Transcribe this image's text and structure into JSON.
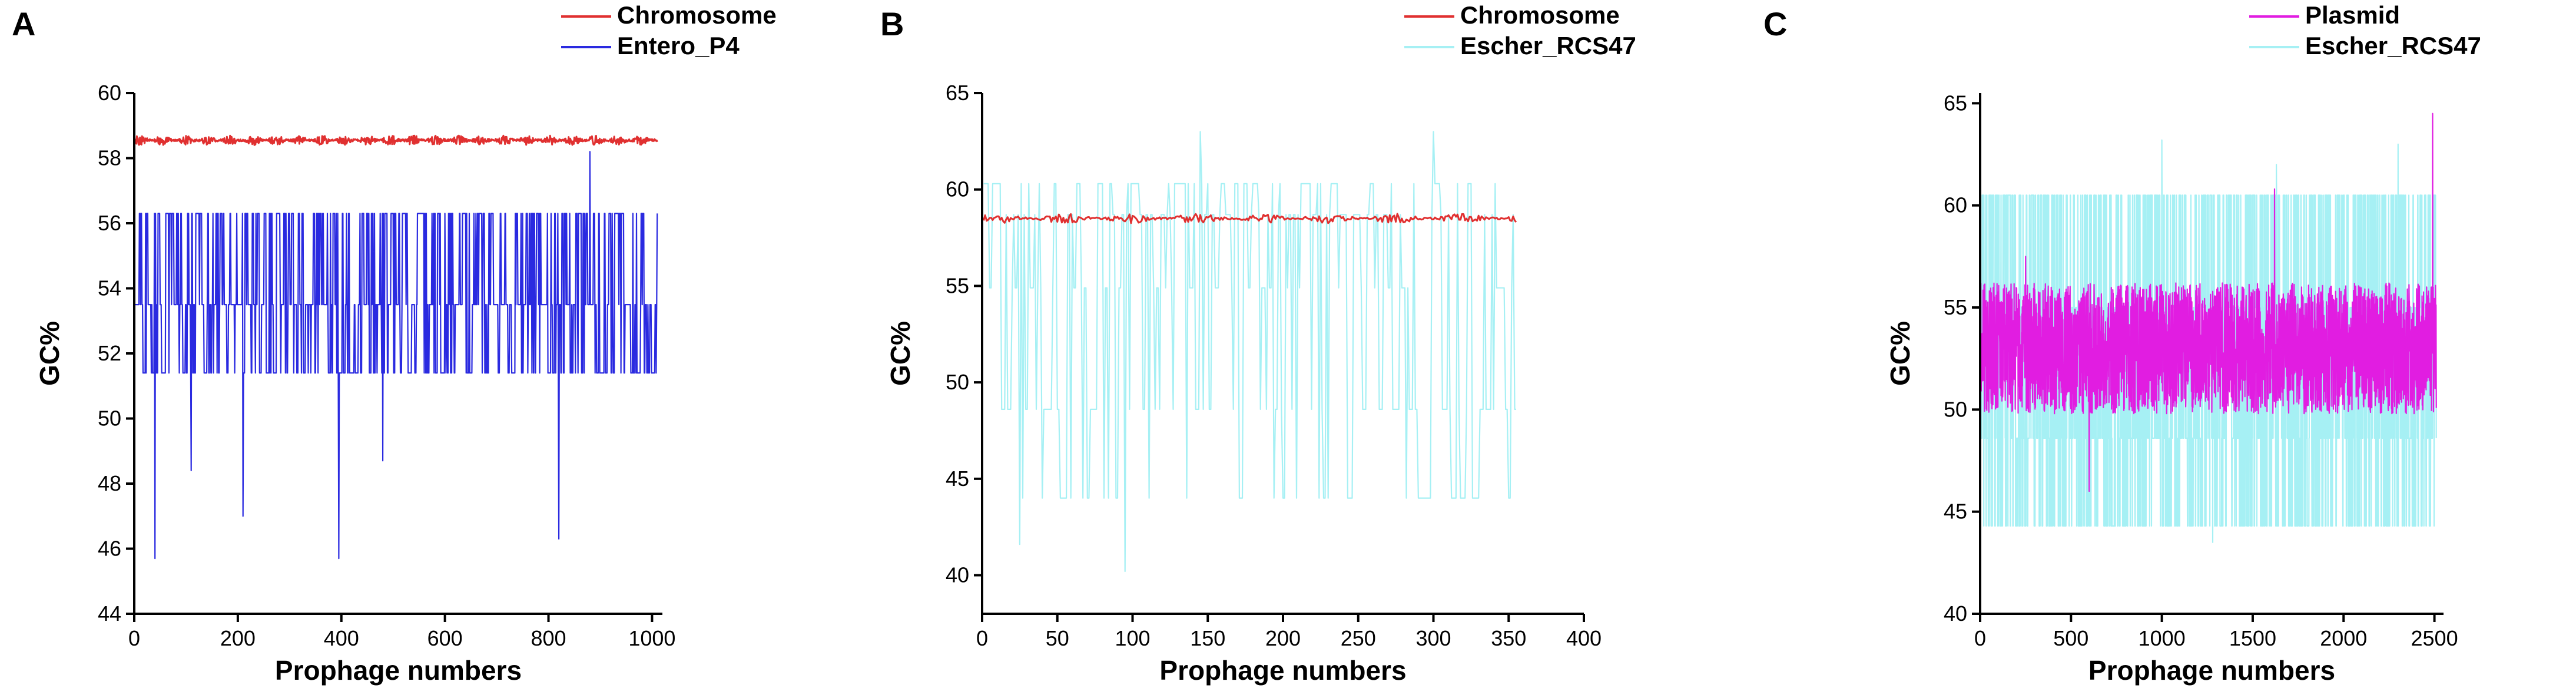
{
  "chart_data": [
    {
      "type": "line",
      "panel_label": "A",
      "xlabel": "Prophage numbers",
      "ylabel": "GC%",
      "xlim": [
        0,
        1020
      ],
      "ylim": [
        44,
        60
      ],
      "xticks": [
        0,
        200,
        400,
        600,
        800,
        1000
      ],
      "yticks": [
        44,
        46,
        48,
        50,
        52,
        54,
        56,
        58,
        60
      ],
      "legend_position": "top-right",
      "series": [
        {
          "name": "Chromosome",
          "color": "#e03030",
          "n": 1010,
          "center": 58.55,
          "amplitude": 0.15,
          "pattern": "flat"
        },
        {
          "name": "Entero_P4",
          "color": "#2a2ae0",
          "n": 1010,
          "levels": [
            56.3,
            53.5,
            51.4
          ],
          "extremes": [
            [
              40,
              45.7
            ],
            [
              395,
              45.7
            ],
            [
              820,
              46.3
            ],
            [
              880,
              58.2
            ],
            [
              210,
              47.0
            ],
            [
              110,
              48.4
            ],
            [
              480,
              48.7
            ]
          ],
          "pattern": "levels"
        }
      ]
    },
    {
      "type": "line",
      "panel_label": "B",
      "xlabel": "Prophage numbers",
      "ylabel": "GC%",
      "xlim": [
        0,
        400
      ],
      "ylim": [
        38,
        65
      ],
      "xticks": [
        0,
        50,
        100,
        150,
        200,
        250,
        300,
        350,
        400
      ],
      "yticks": [
        40,
        45,
        50,
        55,
        60,
        65
      ],
      "legend_position": "top-right",
      "series": [
        {
          "name": "Escher_RCS47",
          "color": "#a6f0f4",
          "n": 355,
          "levels": [
            60.3,
            58.7,
            54.9,
            48.6,
            44.0
          ],
          "extremes": [
            [
              145,
              63.0
            ],
            [
              300,
              63.0
            ],
            [
              95,
              40.2
            ],
            [
              25,
              41.6
            ]
          ],
          "pattern": "levels"
        },
        {
          "name": "Chromosome",
          "color": "#e03030",
          "n": 355,
          "center": 58.5,
          "amplitude": 0.25,
          "pattern": "flat"
        }
      ]
    },
    {
      "type": "line",
      "panel_label": "C",
      "xlabel": "Prophage numbers",
      "ylabel": "GC%",
      "xlim": [
        0,
        2550
      ],
      "ylim": [
        40,
        65.5
      ],
      "xticks": [
        0,
        500,
        1000,
        1500,
        2000,
        2500
      ],
      "yticks": [
        40,
        45,
        50,
        55,
        60,
        65
      ],
      "legend_position": "top-right",
      "series": [
        {
          "name": "Escher_RCS47",
          "color": "#a6f0f4",
          "n": 2510,
          "levels": [
            60.5,
            55.0,
            48.6,
            44.3
          ],
          "extremes": [
            [
              1000,
              63.2
            ],
            [
              2300,
              63.0
            ],
            [
              1280,
              43.5
            ],
            [
              1630,
              62.0
            ]
          ],
          "pattern": "levels"
        },
        {
          "name": "Plasmid",
          "color": "#e11de1",
          "n": 2510,
          "center": 53.0,
          "amplitude": 3.2,
          "extremes": [
            [
              2490,
              64.5
            ],
            [
              1620,
              60.8
            ],
            [
              600,
              46.0
            ],
            [
              250,
              57.5
            ]
          ],
          "pattern": "noisy"
        }
      ]
    }
  ]
}
